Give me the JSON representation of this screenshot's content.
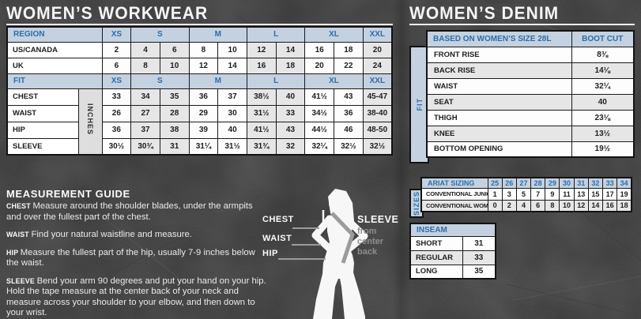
{
  "workwear": {
    "title": "WOMEN’S WORKWEAR",
    "table": {
      "region_label": "REGION",
      "fit_label": "FIT",
      "unit_label": "INCHES",
      "size_groups": [
        "XS",
        "S",
        "M",
        "L",
        "XL",
        "XXL"
      ],
      "group_spans": [
        1,
        2,
        2,
        2,
        2,
        1
      ],
      "region_rows": [
        {
          "label": "US/CANADA",
          "values": [
            "2",
            "4",
            "6",
            "8",
            "10",
            "12",
            "14",
            "16",
            "18",
            "20"
          ]
        },
        {
          "label": "UK",
          "values": [
            "6",
            "8",
            "10",
            "12",
            "14",
            "16",
            "18",
            "20",
            "22",
            "24"
          ]
        }
      ],
      "fit_rows": [
        {
          "label": "CHEST",
          "values": [
            "33",
            "34",
            "35",
            "36",
            "37",
            "38½",
            "40",
            "41½",
            "43",
            "45-47"
          ]
        },
        {
          "label": "WAIST",
          "values": [
            "26",
            "27",
            "28",
            "29",
            "30",
            "31½",
            "33",
            "34½",
            "36",
            "38-40"
          ]
        },
        {
          "label": "HIP",
          "values": [
            "36",
            "37",
            "38",
            "39",
            "40",
            "41½",
            "43",
            "44½",
            "46",
            "48-50"
          ]
        },
        {
          "label": "SLEEVE",
          "values": [
            "30½",
            "30¾",
            "31",
            "31¼",
            "31½",
            "31¾",
            "32",
            "32¼",
            "32½",
            "32½"
          ]
        }
      ]
    },
    "guide": {
      "title": "MEASUREMENT GUIDE",
      "items": [
        {
          "term": "CHEST",
          "text": "Measure around the shoulder blades, under the armpits and over the fullest part of the chest."
        },
        {
          "term": "WAIST",
          "text": "Find your natural waistline and measure."
        },
        {
          "term": "HIP",
          "text": "Measure the fullest part of the hip, usually 7-9 inches below the waist."
        },
        {
          "term": "SLEEVE",
          "text": "Bend your arm 90 degrees and put your hand on your hip. Hold the tape measure at the center back of your neck and measure across your shoulder to your elbow, and then down to your wrist."
        }
      ]
    },
    "figure_labels": {
      "chest": "CHEST",
      "waist": "WAIST",
      "hip": "HIP",
      "sleeve": "SLEEVE",
      "sleeve_sub": "from center back"
    }
  },
  "denim": {
    "title": "WOMEN’S DENIM",
    "fit_table": {
      "side_label": "FIT",
      "header_label": "BASED ON WOMEN’S SIZE 28L",
      "header_value": "BOOT CUT",
      "rows": [
        {
          "label": "FRONT RISE",
          "value": "8⅜"
        },
        {
          "label": "BACK RISE",
          "value": "14⅛"
        },
        {
          "label": "WAIST",
          "value": "32¼"
        },
        {
          "label": "SEAT",
          "value": "40"
        },
        {
          "label": "THIGH",
          "value": "23⅛"
        },
        {
          "label": "KNEE",
          "value": "13½"
        },
        {
          "label": "BOTTOM OPENING",
          "value": "19½"
        }
      ]
    },
    "sizing_table": {
      "side_label": "SIZES",
      "header_label": "ARIAT SIZING",
      "sizes": [
        "25",
        "26",
        "27",
        "28",
        "29",
        "30",
        "31",
        "32",
        "33",
        "34"
      ],
      "rows": [
        {
          "label": "CONVENTIONAL JUNIORS",
          "values": [
            "1",
            "3",
            "5",
            "7",
            "9",
            "11",
            "13",
            "15",
            "17",
            "19"
          ]
        },
        {
          "label": "CONVENTIONAL WOMEN’S",
          "values": [
            "0",
            "2",
            "4",
            "6",
            "8",
            "10",
            "12",
            "14",
            "16",
            "18"
          ]
        }
      ]
    },
    "inseam_table": {
      "header_label": "INSEAM",
      "rows": [
        {
          "label": "SHORT",
          "value": "31"
        },
        {
          "label": "REGULAR",
          "value": "33"
        },
        {
          "label": "LONG",
          "value": "35"
        }
      ]
    }
  },
  "colors": {
    "background": "#545454",
    "header_bg": "#c4d1e0",
    "accent_blue": "#2d6da8",
    "row_alt": "#e6e6e6",
    "border": "#1a1a1a",
    "text_light": "#f5f5f5"
  }
}
